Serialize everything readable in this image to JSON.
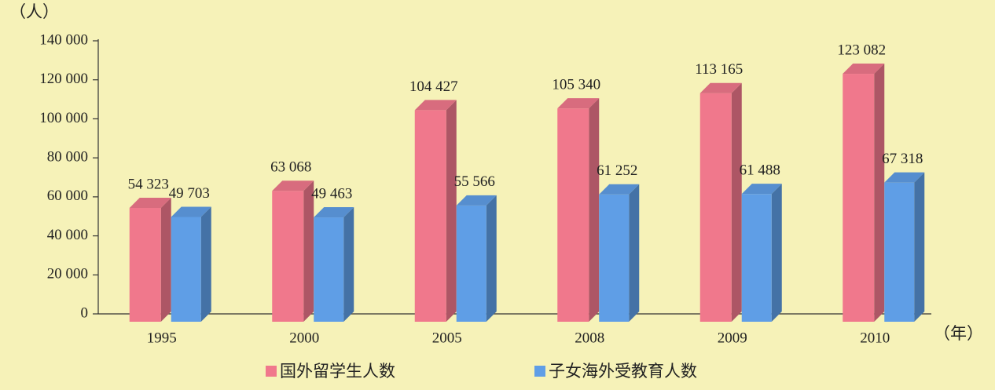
{
  "chart_data": {
    "type": "bar3d",
    "y_unit": "（人）",
    "x_unit": "（年）",
    "categories": [
      "1995",
      "2000",
      "2005",
      "2008",
      "2009",
      "2010"
    ],
    "series": [
      {
        "name": "国外留学生人数",
        "color": "#f0788c",
        "values": [
          54323,
          63068,
          104427,
          105340,
          113165,
          123082
        ],
        "value_labels": [
          "54 323",
          "63 068",
          "104 427",
          "105 340",
          "113 165",
          "123 082"
        ]
      },
      {
        "name": "子女海外受教育人数",
        "color": "#5f9ee6",
        "values": [
          49703,
          49463,
          55566,
          61252,
          61488,
          67318
        ],
        "value_labels": [
          "49 703",
          "49 463",
          "55 566",
          "61 252",
          "61 488",
          "67 318"
        ]
      }
    ],
    "ylim": [
      0,
      140000
    ],
    "yticks": [
      0,
      {
        "value": 20000,
        "label": "20 000"
      },
      {
        "value": 40000,
        "label": "40 000"
      },
      {
        "value": 60000,
        "label": "60 000"
      },
      {
        "value": 80000,
        "label": "80 000"
      },
      {
        "value": 100000,
        "label": "100 000"
      },
      {
        "value": 120000,
        "label": "120 000"
      },
      {
        "value": 140000,
        "label": "140 000"
      }
    ],
    "legend": "bottom"
  }
}
